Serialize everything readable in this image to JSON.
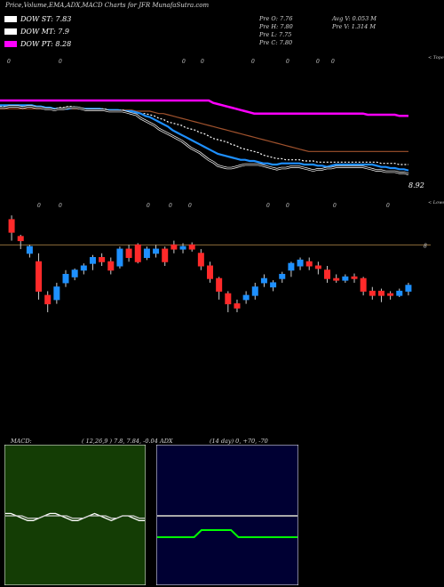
{
  "header": {
    "title": "Price,Volume,EMA,ADX,MACD Charts for JFR MunafaSutra.com",
    "legend": [
      {
        "label": "DOW ST: 7.83",
        "color": "#ffffff"
      },
      {
        "label": "DOW MT: 7.9",
        "color": "#ffffff"
      },
      {
        "label": "DOW PT: 8.28",
        "color": "#ff00ff"
      }
    ],
    "stats": {
      "pre_o": "Pre   O: 7.76",
      "pre_h": "Pre   H: 7.80",
      "pre_l": "Pre   L: 7.75",
      "pre_c": "Pre   C: 7.80",
      "avg_v": "Avg V: 0.053  M",
      "pre_v": "Pre   V: 1.314  M"
    }
  },
  "ema_panel": {
    "top_label": "< Tope",
    "price_label": "8.92",
    "marker_top": "0"
  },
  "candle_panel": {
    "top_label": "< Lower",
    "ref_value": "8",
    "marker": "0"
  },
  "macd": {
    "label": "MACD:",
    "params": "( 12,26,9 ) 7.8,  7.84,  -0.04",
    "colors": {
      "bg": "#143d05",
      "line": "#ffffff"
    }
  },
  "adx": {
    "label": "ADX",
    "params": "(14  day) 0,  +70,  -70",
    "colors": {
      "bg": "#000033",
      "adx": "#aaaaaa",
      "di": "#00ff00"
    }
  },
  "chart_data": [
    {
      "type": "line",
      "name": "price_ema",
      "x": [
        0,
        1,
        2,
        3,
        4,
        5,
        6,
        7,
        8,
        9,
        10,
        11,
        12,
        13,
        14,
        15,
        16,
        17,
        18,
        19,
        20,
        21,
        22,
        23,
        24,
        25,
        26,
        27,
        28,
        29,
        30,
        31,
        32,
        33,
        34,
        35,
        36,
        37,
        38,
        39,
        40,
        41,
        42,
        43,
        44,
        45,
        46,
        47,
        48,
        49,
        50,
        51,
        52,
        53,
        54,
        55,
        56,
        57,
        58,
        59,
        60,
        61,
        62,
        63,
        64,
        65,
        66,
        67,
        68,
        69,
        70,
        71,
        72,
        73,
        74,
        75,
        76,
        77,
        78,
        79,
        80,
        81,
        82,
        83,
        84,
        85,
        86,
        87,
        88,
        89,
        90
      ],
      "series": [
        {
          "color": "#ff00ff",
          "values": [
            9.54,
            9.54,
            9.54,
            9.54,
            9.54,
            9.54,
            9.54,
            9.54,
            9.54,
            9.54,
            9.54,
            9.54,
            9.54,
            9.54,
            9.54,
            9.54,
            9.54,
            9.54,
            9.54,
            9.54,
            9.54,
            9.54,
            9.54,
            9.54,
            9.54,
            9.54,
            9.54,
            9.54,
            9.54,
            9.54,
            9.54,
            9.54,
            9.54,
            9.54,
            9.54,
            9.54,
            9.54,
            9.54,
            9.54,
            9.54,
            9.54,
            9.54,
            9.54,
            9.54,
            9.54,
            9.54,
            9.54,
            9.52,
            9.51,
            9.5,
            9.49,
            9.48,
            9.47,
            9.46,
            9.45,
            9.44,
            9.43,
            9.43,
            9.43,
            9.43,
            9.43,
            9.43,
            9.43,
            9.43,
            9.43,
            9.43,
            9.43,
            9.43,
            9.43,
            9.43,
            9.43,
            9.43,
            9.43,
            9.43,
            9.43,
            9.43,
            9.43,
            9.43,
            9.43,
            9.43,
            9.43,
            9.42,
            9.42,
            9.42,
            9.42,
            9.42,
            9.42,
            9.42,
            9.41,
            9.41,
            9.41
          ]
        },
        {
          "color": "#a0522d",
          "values": [
            9.47,
            9.47,
            9.47,
            9.47,
            9.47,
            9.47,
            9.47,
            9.47,
            9.47,
            9.47,
            9.47,
            9.47,
            9.47,
            9.47,
            9.47,
            9.47,
            9.47,
            9.47,
            9.47,
            9.47,
            9.47,
            9.46,
            9.46,
            9.46,
            9.46,
            9.46,
            9.46,
            9.46,
            9.46,
            9.46,
            9.45,
            9.45,
            9.45,
            9.45,
            9.44,
            9.43,
            9.43,
            9.42,
            9.41,
            9.4,
            9.39,
            9.38,
            9.37,
            9.36,
            9.35,
            9.34,
            9.33,
            9.32,
            9.31,
            9.3,
            9.29,
            9.28,
            9.27,
            9.26,
            9.25,
            9.24,
            9.23,
            9.22,
            9.21,
            9.2,
            9.19,
            9.18,
            9.17,
            9.16,
            9.15,
            9.14,
            9.13,
            9.12,
            9.11,
            9.11,
            9.11,
            9.11,
            9.11,
            9.11,
            9.11,
            9.11,
            9.11,
            9.11,
            9.11,
            9.11,
            9.11,
            9.11,
            9.11,
            9.11,
            9.11,
            9.11,
            9.11,
            9.11,
            9.11,
            9.11,
            9.11
          ]
        },
        {
          "color": "#ffffff",
          "values": [
            9.49,
            9.49,
            9.5,
            9.5,
            9.5,
            9.49,
            9.5,
            9.5,
            9.49,
            9.49,
            9.48,
            9.48,
            9.47,
            9.48,
            9.48,
            9.49,
            9.49,
            9.48,
            9.47,
            9.47,
            9.47,
            9.47,
            9.47,
            9.47,
            9.46,
            9.46,
            9.46,
            9.46,
            9.45,
            9.45,
            9.44,
            9.43,
            9.43,
            9.42,
            9.41,
            9.39,
            9.38,
            9.36,
            9.35,
            9.34,
            9.33,
            9.31,
            9.3,
            9.29,
            9.27,
            9.26,
            9.24,
            9.22,
            9.21,
            9.2,
            9.19,
            9.17,
            9.16,
            9.14,
            9.13,
            9.12,
            9.11,
            9.1,
            9.08,
            9.07,
            9.06,
            9.05,
            9.05,
            9.04,
            9.04,
            9.04,
            9.04,
            9.03,
            9.03,
            9.03,
            9.02,
            9.02,
            9.02,
            9.02,
            9.02,
            9.02,
            9.02,
            9.02,
            9.02,
            9.02,
            9.02,
            9.02,
            9.02,
            9.02,
            9.01,
            9.01,
            9.01,
            9.01,
            9.0,
            9.0,
            9.0
          ]
        },
        {
          "color": "#1e90ff",
          "values": [
            9.5,
            9.5,
            9.5,
            9.5,
            9.5,
            9.5,
            9.5,
            9.5,
            9.49,
            9.49,
            9.48,
            9.48,
            9.47,
            9.47,
            9.47,
            9.47,
            9.48,
            9.48,
            9.47,
            9.47,
            9.47,
            9.47,
            9.47,
            9.46,
            9.46,
            9.46,
            9.46,
            9.45,
            9.45,
            9.45,
            9.44,
            9.43,
            9.41,
            9.4,
            9.38,
            9.36,
            9.34,
            9.32,
            9.29,
            9.27,
            9.25,
            9.23,
            9.21,
            9.19,
            9.17,
            9.15,
            9.13,
            9.11,
            9.09,
            9.08,
            9.07,
            9.06,
            9.05,
            9.04,
            9.04,
            9.03,
            9.03,
            9.02,
            9.01,
            9.01,
            9.0,
            9.0,
            9.01,
            9.01,
            9.01,
            9.01,
            9.01,
            9.0,
            9.0,
            9.0,
            8.99,
            8.99,
            8.98,
            8.99,
            9.0,
            9.0,
            9.0,
            9.0,
            9.0,
            9.0,
            9.0,
            9.0,
            9.0,
            8.99,
            8.98,
            8.98,
            8.97,
            8.97,
            8.96,
            8.96,
            8.95
          ]
        },
        {
          "color": "#000000",
          "stroke": "#ffffff",
          "values": [
            9.48,
            9.48,
            9.49,
            9.49,
            9.49,
            9.48,
            9.49,
            9.49,
            9.48,
            9.48,
            9.47,
            9.47,
            9.46,
            9.47,
            9.47,
            9.48,
            9.48,
            9.48,
            9.47,
            9.46,
            9.46,
            9.46,
            9.46,
            9.46,
            9.45,
            9.45,
            9.45,
            9.45,
            9.44,
            9.43,
            9.42,
            9.39,
            9.37,
            9.35,
            9.33,
            9.3,
            9.28,
            9.26,
            9.24,
            9.22,
            9.2,
            9.17,
            9.14,
            9.12,
            9.1,
            9.07,
            9.04,
            9.02,
            8.99,
            8.98,
            8.97,
            8.97,
            8.98,
            8.99,
            9.0,
            9.0,
            9.0,
            9.0,
            8.99,
            8.98,
            8.97,
            8.96,
            8.97,
            8.97,
            8.98,
            8.98,
            8.98,
            8.97,
            8.96,
            8.95,
            8.96,
            8.96,
            8.97,
            8.97,
            8.98,
            8.98,
            8.98,
            8.98,
            8.98,
            8.98,
            8.98,
            8.97,
            8.96,
            8.95,
            8.95,
            8.94,
            8.94,
            8.94,
            8.93,
            8.93,
            8.92
          ]
        }
      ]
    },
    {
      "type": "candlestick",
      "name": "price_candles",
      "candles": [
        {
          "o": 8.3,
          "c": 8.15,
          "h": 8.35,
          "l": 8.05
        },
        {
          "o": 8.1,
          "c": 8.05,
          "h": 8.12,
          "l": 7.95
        },
        {
          "o": 7.9,
          "c": 7.98,
          "h": 8.0,
          "l": 7.85
        },
        {
          "o": 7.8,
          "c": 7.45,
          "h": 7.9,
          "l": 7.35
        },
        {
          "o": 7.4,
          "c": 7.3,
          "h": 7.45,
          "l": 7.2
        },
        {
          "o": 7.35,
          "c": 7.5,
          "h": 7.55,
          "l": 7.3
        },
        {
          "o": 7.55,
          "c": 7.65,
          "h": 7.7,
          "l": 7.5
        },
        {
          "o": 7.62,
          "c": 7.7,
          "h": 7.72,
          "l": 7.58
        },
        {
          "o": 7.7,
          "c": 7.75,
          "h": 7.78,
          "l": 7.65
        },
        {
          "o": 7.78,
          "c": 7.85,
          "h": 7.88,
          "l": 7.7
        },
        {
          "o": 7.85,
          "c": 7.8,
          "h": 7.9,
          "l": 7.75
        },
        {
          "o": 7.8,
          "c": 7.7,
          "h": 7.85,
          "l": 7.65
        },
        {
          "o": 7.75,
          "c": 7.95,
          "h": 7.98,
          "l": 7.72
        },
        {
          "o": 7.95,
          "c": 7.85,
          "h": 8.0,
          "l": 7.8
        },
        {
          "o": 8.0,
          "c": 7.8,
          "h": 8.02,
          "l": 7.78
        },
        {
          "o": 7.85,
          "c": 7.95,
          "h": 7.98,
          "l": 7.82
        },
        {
          "o": 7.9,
          "c": 7.95,
          "h": 8.0,
          "l": 7.85
        },
        {
          "o": 7.95,
          "c": 7.8,
          "h": 7.98,
          "l": 7.75
        },
        {
          "o": 8.0,
          "c": 7.95,
          "h": 8.05,
          "l": 7.9
        },
        {
          "o": 7.95,
          "c": 7.98,
          "h": 8.02,
          "l": 7.9
        },
        {
          "o": 8.0,
          "c": 7.95,
          "h": 8.03,
          "l": 7.92
        },
        {
          "o": 7.9,
          "c": 7.75,
          "h": 7.95,
          "l": 7.7
        },
        {
          "o": 7.75,
          "c": 7.6,
          "h": 7.8,
          "l": 7.55
        },
        {
          "o": 7.6,
          "c": 7.45,
          "h": 7.62,
          "l": 7.35
        },
        {
          "o": 7.42,
          "c": 7.3,
          "h": 7.45,
          "l": 7.2
        },
        {
          "o": 7.3,
          "c": 7.25,
          "h": 7.35,
          "l": 7.2
        },
        {
          "o": 7.35,
          "c": 7.4,
          "h": 7.45,
          "l": 7.3
        },
        {
          "o": 7.4,
          "c": 7.5,
          "h": 7.55,
          "l": 7.35
        },
        {
          "o": 7.55,
          "c": 7.6,
          "h": 7.65,
          "l": 7.5
        },
        {
          "o": 7.5,
          "c": 7.55,
          "h": 7.58,
          "l": 7.45
        },
        {
          "o": 7.6,
          "c": 7.65,
          "h": 7.68,
          "l": 7.55
        },
        {
          "o": 7.7,
          "c": 7.78,
          "h": 7.8,
          "l": 7.62
        },
        {
          "o": 7.75,
          "c": 7.82,
          "h": 7.85,
          "l": 7.7
        },
        {
          "o": 7.8,
          "c": 7.75,
          "h": 7.85,
          "l": 7.7
        },
        {
          "o": 7.75,
          "c": 7.72,
          "h": 7.8,
          "l": 7.65
        },
        {
          "o": 7.7,
          "c": 7.6,
          "h": 7.75,
          "l": 7.55
        },
        {
          "o": 7.6,
          "c": 7.58,
          "h": 7.65,
          "l": 7.55
        },
        {
          "o": 7.58,
          "c": 7.62,
          "h": 7.65,
          "l": 7.55
        },
        {
          "o": 7.62,
          "c": 7.6,
          "h": 7.66,
          "l": 7.55
        },
        {
          "o": 7.6,
          "c": 7.45,
          "h": 7.62,
          "l": 7.4
        },
        {
          "o": 7.45,
          "c": 7.4,
          "h": 7.5,
          "l": 7.35
        },
        {
          "o": 7.45,
          "c": 7.4,
          "h": 7.48,
          "l": 7.32
        },
        {
          "o": 7.42,
          "c": 7.4,
          "h": 7.45,
          "l": 7.35
        },
        {
          "o": 7.4,
          "c": 7.45,
          "h": 7.48,
          "l": 7.38
        },
        {
          "o": 7.45,
          "c": 7.52,
          "h": 7.55,
          "l": 7.4
        }
      ]
    },
    {
      "type": "line",
      "name": "macd",
      "series": [
        {
          "color": "#ffffff",
          "values": [
            0.01,
            0.01,
            0.0,
            -0.01,
            -0.02,
            -0.02,
            -0.01,
            0.0,
            0.01,
            0.01,
            0.0,
            -0.01,
            -0.02,
            -0.02,
            -0.01,
            0.0,
            0.01,
            0.0,
            -0.01,
            -0.02,
            -0.01,
            0.0,
            0.0,
            -0.01,
            -0.02,
            -0.02
          ]
        },
        {
          "color": "#cccccc",
          "values": [
            0.0,
            0.0,
            0.0,
            0.0,
            -0.01,
            -0.01,
            -0.01,
            0.0,
            0.0,
            0.0,
            0.0,
            0.0,
            -0.01,
            -0.01,
            -0.01,
            0.0,
            0.0,
            0.0,
            0.0,
            -0.01,
            -0.01,
            0.0,
            0.0,
            0.0,
            -0.01,
            -0.01
          ]
        }
      ]
    },
    {
      "type": "line",
      "name": "adx",
      "series": [
        {
          "color": "#aaaaaa",
          "values": [
            60,
            60,
            60,
            60,
            60,
            60,
            60,
            60,
            60,
            60,
            60,
            60,
            60,
            60,
            60,
            60,
            60,
            60,
            60,
            60
          ]
        },
        {
          "color": "#00ff00",
          "values": [
            -20,
            -20,
            -20,
            -20,
            -20,
            -20,
            -10,
            -10,
            -10,
            -10,
            -10,
            -20,
            -20,
            -20,
            -20,
            -20,
            -20,
            -20,
            -20,
            -20
          ]
        }
      ]
    }
  ]
}
